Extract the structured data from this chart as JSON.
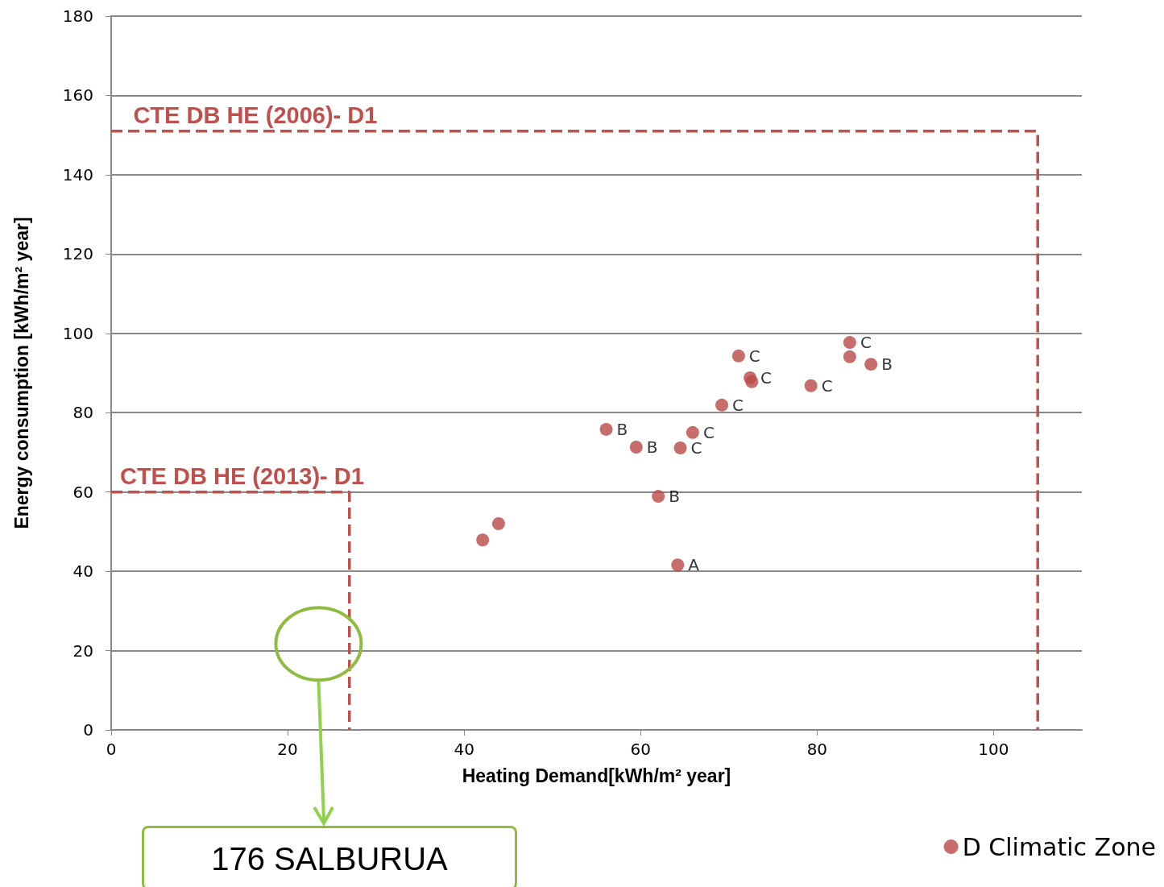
{
  "chart_data": {
    "type": "scatter",
    "xlabel": "Heating Demand[kWh/m² year]",
    "ylabel": "Energy consumption [kWh/m² year]",
    "xlim": [
      0,
      110
    ],
    "xticks": [
      0,
      20,
      40,
      60,
      80,
      100
    ],
    "ylim": [
      0,
      180
    ],
    "yticks": [
      0,
      20,
      40,
      60,
      80,
      100,
      120,
      140,
      160,
      180
    ],
    "grid": "y",
    "legend": "bottom right",
    "marker": "circle",
    "series": [
      {
        "name": "D Climatic Zone",
        "color": "#b94a48",
        "x": [
          42.1,
          43.9,
          56.1,
          59.5,
          62.0,
          64.5,
          65.9,
          64.2,
          69.2,
          71.1,
          72.4,
          72.6,
          79.3,
          83.7,
          83.7,
          86.1
        ],
        "values": [
          47.9,
          52.0,
          75.8,
          71.3,
          58.9,
          71.1,
          75.0,
          41.6,
          81.9,
          94.3,
          88.8,
          87.8,
          86.8,
          97.7,
          94.1,
          92.2
        ],
        "value_labels": [
          null,
          null,
          "B",
          "B",
          "B",
          "C",
          "C",
          "A",
          "C",
          "C",
          "C",
          null,
          "C",
          "C",
          null,
          "B"
        ]
      },
      {
        "type": "line",
        "color": "#c0504d",
        "line_style": "dashed",
        "marker": "none",
        "x": [
          0,
          105,
          105
        ],
        "values": [
          151,
          151,
          0
        ]
      },
      {
        "type": "line",
        "color": "#c0504d",
        "line_style": "dashed",
        "marker": "none",
        "x": [
          0,
          27,
          27
        ],
        "values": [
          60,
          60,
          0
        ]
      }
    ],
    "annotations": [
      {
        "text": "CTE DB HE (2006)- D1",
        "x": 2.5,
        "y": 151
      },
      {
        "text": "CTE DB HE (2013)- D1",
        "x": 1,
        "y": 60
      },
      "176 SALBURUA"
    ]
  }
}
